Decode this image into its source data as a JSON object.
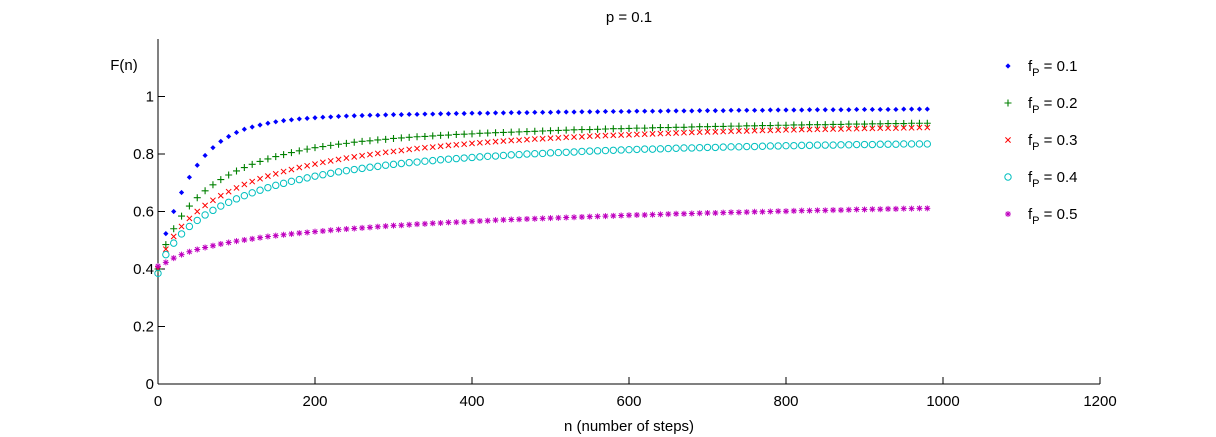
{
  "chart_data": {
    "type": "scatter",
    "title": "p = 0.1",
    "xlabel": "n (number of steps)",
    "ylabel": "F(n)",
    "xlim": [
      0,
      1200
    ],
    "ylim": [
      0,
      1.2
    ],
    "xticks": [
      0,
      200,
      400,
      600,
      800,
      1000,
      1200
    ],
    "xtick_labels": [
      "0",
      "200",
      "400",
      "600",
      "800",
      "1000",
      "1200"
    ],
    "yticks": [
      0,
      0.2,
      0.4,
      0.6,
      0.8,
      1
    ],
    "ytick_labels": [
      "0",
      "0.2",
      "0.4",
      "0.6",
      "0.8",
      "1"
    ],
    "grid": false,
    "legend_position": "top-right",
    "x": [
      0,
      10,
      20,
      30,
      40,
      50,
      60,
      70,
      80,
      90,
      100,
      110,
      120,
      130,
      140,
      150,
      160,
      170,
      180,
      190,
      200,
      210,
      220,
      230,
      240,
      250,
      260,
      270,
      280,
      290,
      300,
      310,
      320,
      330,
      340,
      350,
      360,
      370,
      380,
      390,
      400,
      410,
      420,
      430,
      440,
      450,
      460,
      470,
      480,
      490,
      500,
      510,
      520,
      530,
      540,
      550,
      560,
      570,
      580,
      590,
      600,
      610,
      620,
      630,
      640,
      650,
      660,
      670,
      680,
      690,
      700,
      710,
      720,
      730,
      740,
      750,
      760,
      770,
      780,
      790,
      800,
      810,
      820,
      830,
      840,
      850,
      860,
      870,
      880,
      890,
      900,
      910,
      920,
      930,
      940,
      950,
      960,
      970,
      980
    ],
    "series": [
      {
        "name_main": "f",
        "name_sub": "P",
        "name_value": " = 0.1",
        "marker": "dot",
        "color": "#0000ff",
        "values": [
          0.4,
          0.523,
          0.6,
          0.666,
          0.719,
          0.761,
          0.795,
          0.822,
          0.844,
          0.861,
          0.875,
          0.886,
          0.894,
          0.901,
          0.907,
          0.912,
          0.916,
          0.919,
          0.922,
          0.924,
          0.926,
          0.928,
          0.929,
          0.931,
          0.932,
          0.933,
          0.934,
          0.935,
          0.935,
          0.936,
          0.937,
          0.937,
          0.938,
          0.938,
          0.939,
          0.939,
          0.94,
          0.94,
          0.941,
          0.941,
          0.942,
          0.942,
          0.942,
          0.943,
          0.943,
          0.944,
          0.944,
          0.944,
          0.945,
          0.945,
          0.945,
          0.946,
          0.946,
          0.946,
          0.947,
          0.947,
          0.947,
          0.948,
          0.948,
          0.948,
          0.948,
          0.949,
          0.949,
          0.949,
          0.949,
          0.95,
          0.95,
          0.95,
          0.95,
          0.951,
          0.951,
          0.951,
          0.951,
          0.952,
          0.952,
          0.952,
          0.952,
          0.952,
          0.953,
          0.953,
          0.953,
          0.953,
          0.953,
          0.954,
          0.954,
          0.954,
          0.954,
          0.954,
          0.954,
          0.955,
          0.955,
          0.955,
          0.955,
          0.955,
          0.955,
          0.956,
          0.956,
          0.956,
          0.956
        ]
      },
      {
        "name_main": "f",
        "name_sub": "P",
        "name_value": " = 0.2",
        "marker": "plus",
        "color": "#008000",
        "values": [
          0.4,
          0.485,
          0.54,
          0.584,
          0.619,
          0.648,
          0.672,
          0.693,
          0.711,
          0.727,
          0.741,
          0.753,
          0.764,
          0.774,
          0.783,
          0.791,
          0.798,
          0.805,
          0.811,
          0.817,
          0.822,
          0.826,
          0.83,
          0.834,
          0.837,
          0.841,
          0.844,
          0.846,
          0.849,
          0.851,
          0.854,
          0.856,
          0.858,
          0.86,
          0.861,
          0.863,
          0.865,
          0.866,
          0.868,
          0.869,
          0.87,
          0.872,
          0.873,
          0.874,
          0.875,
          0.876,
          0.877,
          0.878,
          0.879,
          0.88,
          0.881,
          0.882,
          0.883,
          0.884,
          0.885,
          0.885,
          0.886,
          0.887,
          0.888,
          0.888,
          0.889,
          0.89,
          0.89,
          0.891,
          0.892,
          0.892,
          0.893,
          0.893,
          0.894,
          0.895,
          0.895,
          0.896,
          0.896,
          0.897,
          0.897,
          0.898,
          0.898,
          0.899,
          0.899,
          0.9,
          0.9,
          0.901,
          0.901,
          0.902,
          0.902,
          0.902,
          0.903,
          0.903,
          0.904,
          0.904,
          0.904,
          0.905,
          0.905,
          0.906,
          0.906,
          0.906,
          0.907,
          0.907,
          0.907
        ]
      },
      {
        "name_main": "f",
        "name_sub": "P",
        "name_value": " = 0.3",
        "marker": "cross",
        "color": "#ff0000",
        "values": [
          0.4,
          0.469,
          0.513,
          0.548,
          0.576,
          0.6,
          0.621,
          0.639,
          0.655,
          0.669,
          0.682,
          0.694,
          0.704,
          0.714,
          0.723,
          0.731,
          0.739,
          0.746,
          0.753,
          0.759,
          0.765,
          0.771,
          0.776,
          0.781,
          0.786,
          0.79,
          0.794,
          0.798,
          0.802,
          0.806,
          0.809,
          0.812,
          0.816,
          0.819,
          0.822,
          0.824,
          0.827,
          0.83,
          0.832,
          0.834,
          0.837,
          0.839,
          0.841,
          0.843,
          0.845,
          0.847,
          0.848,
          0.85,
          0.852,
          0.853,
          0.855,
          0.856,
          0.858,
          0.859,
          0.86,
          0.862,
          0.863,
          0.864,
          0.865,
          0.866,
          0.867,
          0.868,
          0.869,
          0.87,
          0.871,
          0.872,
          0.873,
          0.874,
          0.875,
          0.876,
          0.877,
          0.877,
          0.878,
          0.879,
          0.88,
          0.88,
          0.881,
          0.882,
          0.882,
          0.883,
          0.884,
          0.884,
          0.885,
          0.885,
          0.886,
          0.886,
          0.887,
          0.887,
          0.888,
          0.888,
          0.889,
          0.889,
          0.89,
          0.89,
          0.89,
          0.891,
          0.891,
          0.892,
          0.892
        ]
      },
      {
        "name_main": "f",
        "name_sub": "P",
        "name_value": " = 0.4",
        "marker": "circle",
        "color": "#00bfbf",
        "values": [
          0.385,
          0.45,
          0.49,
          0.522,
          0.548,
          0.569,
          0.588,
          0.604,
          0.619,
          0.632,
          0.644,
          0.655,
          0.665,
          0.674,
          0.683,
          0.691,
          0.698,
          0.705,
          0.711,
          0.717,
          0.723,
          0.728,
          0.733,
          0.738,
          0.742,
          0.746,
          0.75,
          0.754,
          0.757,
          0.761,
          0.764,
          0.767,
          0.77,
          0.772,
          0.775,
          0.777,
          0.78,
          0.782,
          0.784,
          0.786,
          0.788,
          0.79,
          0.792,
          0.793,
          0.795,
          0.797,
          0.798,
          0.8,
          0.801,
          0.802,
          0.804,
          0.805,
          0.806,
          0.807,
          0.809,
          0.81,
          0.811,
          0.812,
          0.813,
          0.814,
          0.815,
          0.816,
          0.817,
          0.817,
          0.818,
          0.819,
          0.82,
          0.821,
          0.821,
          0.822,
          0.823,
          0.823,
          0.824,
          0.825,
          0.825,
          0.826,
          0.826,
          0.827,
          0.828,
          0.828,
          0.829,
          0.829,
          0.83,
          0.83,
          0.831,
          0.831,
          0.831,
          0.832,
          0.832,
          0.833,
          0.833,
          0.833,
          0.834,
          0.834,
          0.834,
          0.835,
          0.835,
          0.835,
          0.835
        ]
      },
      {
        "name_main": "f",
        "name_sub": "P",
        "name_value": " = 0.5",
        "marker": "asterisk",
        "color": "#bf00bf",
        "values": [
          0.41,
          0.423,
          0.438,
          0.45,
          0.46,
          0.468,
          0.475,
          0.481,
          0.487,
          0.492,
          0.497,
          0.501,
          0.505,
          0.509,
          0.513,
          0.516,
          0.519,
          0.522,
          0.525,
          0.527,
          0.53,
          0.532,
          0.535,
          0.537,
          0.539,
          0.541,
          0.543,
          0.545,
          0.547,
          0.549,
          0.551,
          0.552,
          0.554,
          0.556,
          0.557,
          0.559,
          0.56,
          0.562,
          0.563,
          0.564,
          0.566,
          0.567,
          0.568,
          0.57,
          0.571,
          0.572,
          0.573,
          0.574,
          0.575,
          0.576,
          0.577,
          0.578,
          0.579,
          0.58,
          0.581,
          0.582,
          0.583,
          0.584,
          0.585,
          0.586,
          0.587,
          0.588,
          0.588,
          0.589,
          0.59,
          0.591,
          0.592,
          0.592,
          0.593,
          0.594,
          0.595,
          0.595,
          0.596,
          0.597,
          0.597,
          0.598,
          0.599,
          0.599,
          0.6,
          0.601,
          0.601,
          0.602,
          0.603,
          0.603,
          0.604,
          0.604,
          0.605,
          0.605,
          0.606,
          0.607,
          0.607,
          0.608,
          0.608,
          0.609,
          0.609,
          0.61,
          0.61,
          0.611,
          0.611
        ]
      }
    ]
  }
}
